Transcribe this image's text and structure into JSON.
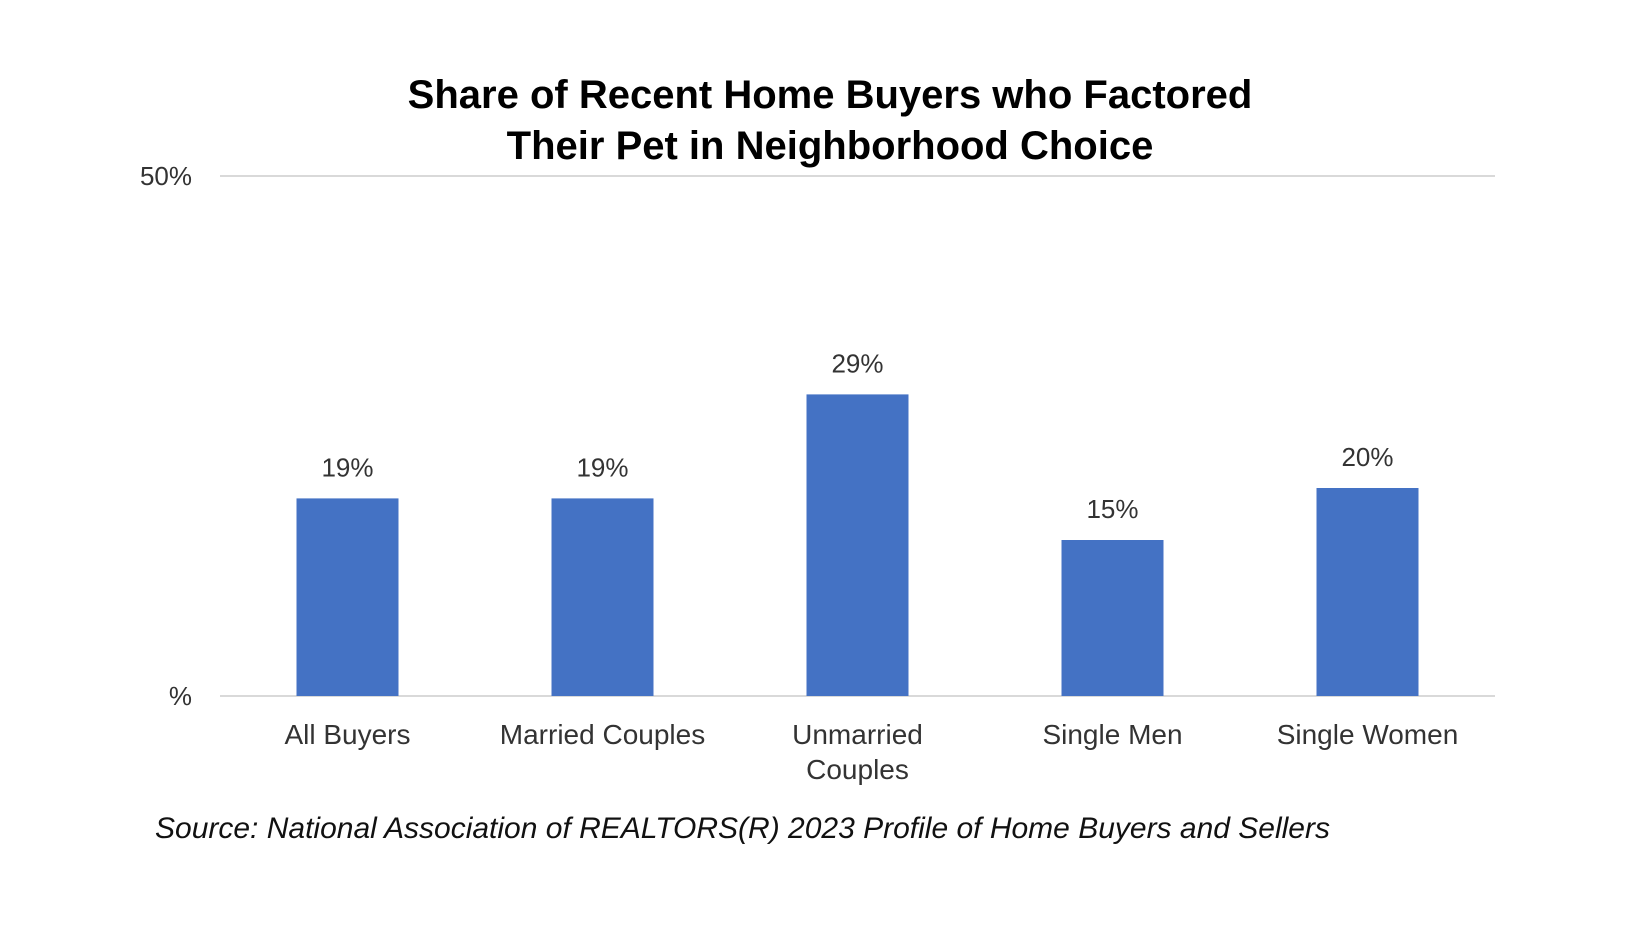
{
  "chart_data": {
    "type": "bar",
    "title_lines": [
      "Share of Recent Home Buyers who Factored",
      "Their Pet in Neighborhood Choice"
    ],
    "categories": [
      [
        "All Buyers"
      ],
      [
        "Married Couples"
      ],
      [
        "Unmarried",
        "Couples"
      ],
      [
        "Single Men"
      ],
      [
        "Single Women"
      ]
    ],
    "values": [
      19,
      19,
      29,
      15,
      20
    ],
    "value_labels": [
      "19%",
      "19%",
      "29%",
      "15%",
      "20%"
    ],
    "ylim": [
      0,
      50
    ],
    "y_ticks": [
      {
        "value": 50,
        "label": "50%"
      },
      {
        "value": 0,
        "label": "%"
      }
    ],
    "gridlines": "major y at ticks",
    "legend": "none",
    "bar_color": "#4472C4",
    "gridline_color": "#D9D9D9",
    "source": "Source: National Association of REALTORS(R) 2023 Profile of Home Buyers and Sellers"
  }
}
